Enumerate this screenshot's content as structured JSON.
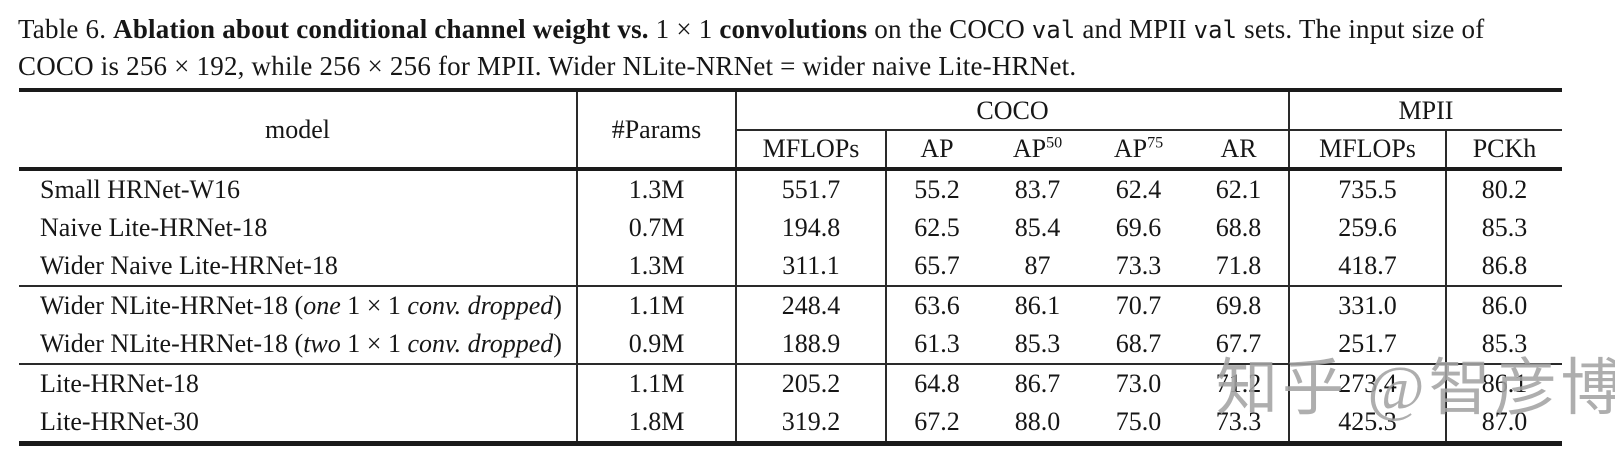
{
  "caption": {
    "line1_parts": [
      {
        "t": "Table 6. ",
        "s": "normal"
      },
      {
        "t": "Ablation about conditional channel weight vs.",
        "s": "bold"
      },
      {
        "t": " 1 × 1 ",
        "s": "normal"
      },
      {
        "t": "convolutions",
        "s": "bold"
      },
      {
        "t": " on the COCO ",
        "s": "normal"
      },
      {
        "t": "val",
        "s": "mono"
      },
      {
        "t": " and MPII ",
        "s": "normal"
      },
      {
        "t": "val",
        "s": "mono"
      },
      {
        "t": " sets. The input size of",
        "s": "normal"
      }
    ],
    "line2_parts": [
      {
        "t": "COCO is 256 × 192, while 256 × 256 for MPII. Wider NLite-NRNet = wider naive Lite-HRNet.",
        "s": "normal"
      }
    ]
  },
  "table": {
    "header": {
      "model": "model",
      "params": "#Params",
      "coco_group": "COCO",
      "mpii_group": "MPII",
      "sub": {
        "coco_mflops": [
          {
            "t": "MFLOPs"
          }
        ],
        "ap": [
          {
            "t": "AP"
          }
        ],
        "ap50": [
          {
            "t": "AP"
          },
          {
            "t": "50",
            "sup": true
          }
        ],
        "ap75": [
          {
            "t": "AP"
          },
          {
            "t": "75",
            "sup": true
          }
        ],
        "ar": [
          {
            "t": "AR"
          }
        ],
        "mpii_mflops": [
          {
            "t": "MFLOPs"
          }
        ],
        "pckh": [
          {
            "t": "PCKh"
          }
        ]
      }
    },
    "rows": [
      {
        "model_parts": [
          {
            "t": "Small HRNet-W16"
          }
        ],
        "params": "1.3M",
        "coco_mflops": "551.7",
        "ap": "55.2",
        "ap50": "83.7",
        "ap75": "62.4",
        "ar": "62.1",
        "mpii_mflops": "735.5",
        "pckh": "80.2"
      },
      {
        "model_parts": [
          {
            "t": "Naive Lite-HRNet-18"
          }
        ],
        "params": "0.7M",
        "coco_mflops": "194.8",
        "ap": "62.5",
        "ap50": "85.4",
        "ap75": "69.6",
        "ar": "68.8",
        "mpii_mflops": "259.6",
        "pckh": "85.3"
      },
      {
        "model_parts": [
          {
            "t": "Wider Naive Lite-HRNet-18"
          }
        ],
        "params": "1.3M",
        "coco_mflops": "311.1",
        "ap": "65.7",
        "ap50": "87",
        "ap75": "73.3",
        "ar": "71.8",
        "mpii_mflops": "418.7",
        "pckh": "86.8"
      },
      {
        "model_parts": [
          {
            "t": "Wider NLite-HRNet-18 ("
          },
          {
            "t": "one",
            "s": "italic"
          },
          {
            "t": " 1 × 1 "
          },
          {
            "t": "conv. dropped",
            "s": "italic"
          },
          {
            "t": ")"
          }
        ],
        "params": "1.1M",
        "coco_mflops": "248.4",
        "ap": "63.6",
        "ap50": "86.1",
        "ap75": "70.7",
        "ar": "69.8",
        "mpii_mflops": "331.0",
        "pckh": "86.0",
        "rule_top": true
      },
      {
        "model_parts": [
          {
            "t": "Wider NLite-HRNet-18 ("
          },
          {
            "t": "two",
            "s": "italic"
          },
          {
            "t": " 1 × 1 "
          },
          {
            "t": "conv. dropped",
            "s": "italic"
          },
          {
            "t": ")"
          }
        ],
        "params": "0.9M",
        "coco_mflops": "188.9",
        "ap": "61.3",
        "ap50": "85.3",
        "ap75": "68.7",
        "ar": "67.7",
        "mpii_mflops": "251.7",
        "pckh": "85.3"
      },
      {
        "model_parts": [
          {
            "t": "Lite-HRNet-18"
          }
        ],
        "params": "1.1M",
        "coco_mflops": "205.2",
        "ap": "64.8",
        "ap50": "86.7",
        "ap75": "73.0",
        "ar": "71.2",
        "mpii_mflops": "273.4",
        "pckh": "86.1",
        "rule_top": true
      },
      {
        "model_parts": [
          {
            "t": "Lite-HRNet-30"
          }
        ],
        "params": "1.8M",
        "coco_mflops": "319.2",
        "ap": "67.2",
        "ap50": "88.0",
        "ap75": "75.0",
        "ar": "73.3",
        "mpii_mflops": "425.3",
        "pckh": "87.0"
      }
    ]
  },
  "watermark": {
    "text": "知乎 @智彦博",
    "color": "#a3a3a3"
  }
}
